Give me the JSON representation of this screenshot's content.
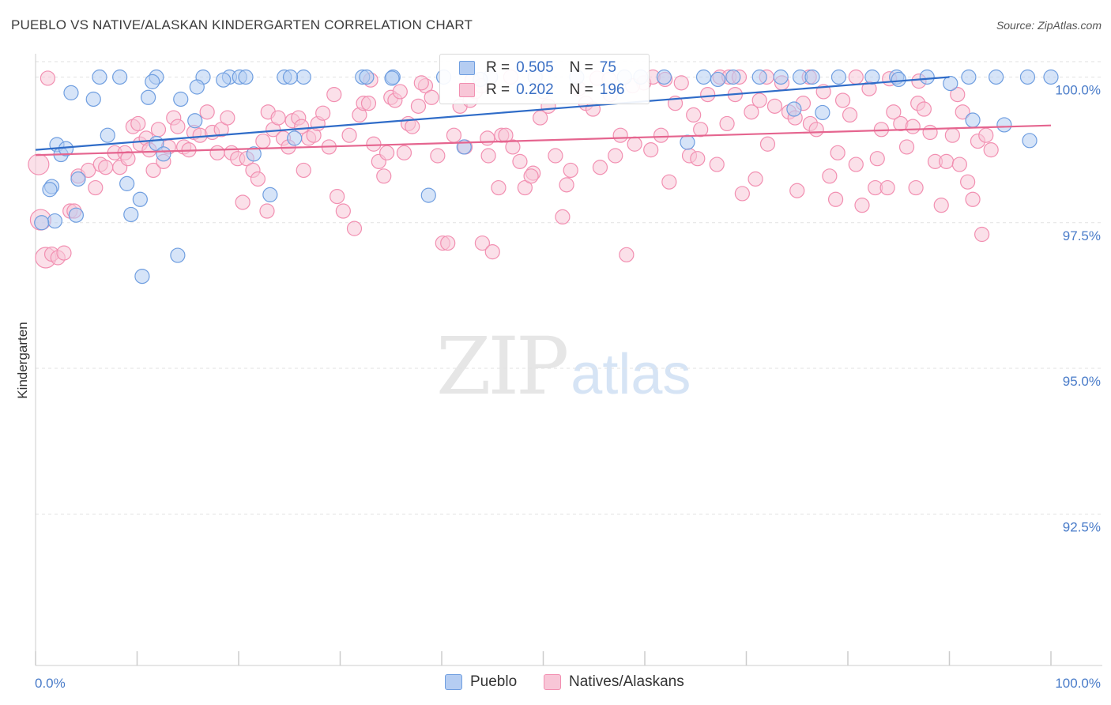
{
  "header": {
    "title": "PUEBLO VS NATIVE/ALASKAN KINDERGARTEN CORRELATION CHART",
    "source": "Source: ZipAtlas.com"
  },
  "watermark": {
    "zip": "ZIP",
    "atlas": "atlas"
  },
  "legend": {
    "r_label": "R =",
    "n_label": "N =",
    "rows": [
      {
        "name": "Pueblo",
        "r": "0.505",
        "n": "75",
        "color": "#6f9ee0"
      },
      {
        "name": "Natives/Alaskans",
        "r": "0.202",
        "n": "196",
        "color": "#f28fb1"
      }
    ]
  },
  "chart_data": {
    "type": "scatter",
    "title": "PUEBLO VS NATIVE/ALASKAN KINDERGARTEN CORRELATION CHART",
    "xlabel": "",
    "ylabel": "Kindergarten",
    "xlim": [
      0,
      100
    ],
    "ylim": [
      89.9,
      100.4
    ],
    "x_tick_labels": [
      "0.0%",
      "100.0%"
    ],
    "y_ticks": [
      {
        "value": 100.0,
        "label": "100.0%"
      },
      {
        "value": 97.5,
        "label": "97.5%"
      },
      {
        "value": 95.0,
        "label": "95.0%"
      },
      {
        "value": 92.5,
        "label": "92.5%"
      }
    ],
    "grid": true,
    "legend_position": "top-center",
    "series": [
      {
        "name": "Pueblo",
        "color": "#6f9ee0",
        "fill": "#b5cdf2",
        "trend": {
          "x": [
            0,
            90
          ],
          "y": [
            98.75,
            100.0
          ]
        },
        "points": [
          [
            6.3,
            100.0
          ],
          [
            8.3,
            100.0
          ],
          [
            11.9,
            100.0
          ],
          [
            16.5,
            100.0
          ],
          [
            19.1,
            100.0
          ],
          [
            20.1,
            100.0
          ],
          [
            20.7,
            100.0
          ],
          [
            24.5,
            100.0
          ],
          [
            26.4,
            100.0
          ],
          [
            32.2,
            100.0
          ],
          [
            35.2,
            100.0
          ],
          [
            40.2,
            100.0
          ],
          [
            44.8,
            100.0
          ],
          [
            49.2,
            100.0
          ],
          [
            53.3,
            100.0
          ],
          [
            59.6,
            100.0
          ],
          [
            61.9,
            100.0
          ],
          [
            65.8,
            100.0
          ],
          [
            68.7,
            100.0
          ],
          [
            71.3,
            100.0
          ],
          [
            73.4,
            100.0
          ],
          [
            75.3,
            100.0
          ],
          [
            76.5,
            100.0
          ],
          [
            79.1,
            100.0
          ],
          [
            82.4,
            100.0
          ],
          [
            84.8,
            100.0
          ],
          [
            87.8,
            100.0
          ],
          [
            91.9,
            100.0
          ],
          [
            94.6,
            100.0
          ],
          [
            97.7,
            100.0
          ],
          [
            100.0,
            100.0
          ],
          [
            35.1,
            99.98
          ],
          [
            43.8,
            99.96
          ],
          [
            67.2,
            99.96
          ],
          [
            18.5,
            99.95
          ],
          [
            90.1,
            99.89
          ],
          [
            85.0,
            99.96
          ],
          [
            3.5,
            99.73
          ],
          [
            5.7,
            99.62
          ],
          [
            11.1,
            99.65
          ],
          [
            14.3,
            99.62
          ],
          [
            15.7,
            99.25
          ],
          [
            15.9,
            99.83
          ],
          [
            74.7,
            99.45
          ],
          [
            92.3,
            99.26
          ],
          [
            77.5,
            99.39
          ],
          [
            11.5,
            99.92
          ],
          [
            7.1,
            99.0
          ],
          [
            2.1,
            98.84
          ],
          [
            2.5,
            98.67
          ],
          [
            3.0,
            98.77
          ],
          [
            11.9,
            98.86
          ],
          [
            12.6,
            98.68
          ],
          [
            21.5,
            98.68
          ],
          [
            25.5,
            98.95
          ],
          [
            42.2,
            98.8
          ],
          [
            64.2,
            98.88
          ],
          [
            97.9,
            98.91
          ],
          [
            95.4,
            99.18
          ],
          [
            1.6,
            98.12
          ],
          [
            4.2,
            98.25
          ],
          [
            9.0,
            98.17
          ],
          [
            1.4,
            98.07
          ],
          [
            10.3,
            97.9
          ],
          [
            23.1,
            97.98
          ],
          [
            38.7,
            97.97
          ],
          [
            4.0,
            97.63
          ],
          [
            1.9,
            97.53
          ],
          [
            0.6,
            97.5
          ],
          [
            9.4,
            97.64
          ],
          [
            14.0,
            96.94
          ],
          [
            10.5,
            96.58
          ],
          [
            25.1,
            100.0
          ],
          [
            32.6,
            100.0
          ],
          [
            58.0,
            100.0
          ]
        ]
      },
      {
        "name": "Natives/Alaskans",
        "color": "#f28fb1",
        "fill": "#f8c6d7",
        "trend": {
          "x": [
            0,
            100
          ],
          "y": [
            98.66,
            99.17
          ]
        },
        "points": [
          [
            0.3,
            98.5
          ],
          [
            1.0,
            96.9
          ],
          [
            0.5,
            97.55
          ],
          [
            1.6,
            96.96
          ],
          [
            2.2,
            96.9
          ],
          [
            2.8,
            96.98
          ],
          [
            3.4,
            97.7
          ],
          [
            3.8,
            97.7
          ],
          [
            4.2,
            98.3
          ],
          [
            5.2,
            98.4
          ],
          [
            5.9,
            98.1
          ],
          [
            6.4,
            98.5
          ],
          [
            6.9,
            98.45
          ],
          [
            7.8,
            98.7
          ],
          [
            8.3,
            98.45
          ],
          [
            8.8,
            98.7
          ],
          [
            9.1,
            98.6
          ],
          [
            9.6,
            99.15
          ],
          [
            10.1,
            99.2
          ],
          [
            10.3,
            98.85
          ],
          [
            10.9,
            98.95
          ],
          [
            11.2,
            98.75
          ],
          [
            11.6,
            98.4
          ],
          [
            12.1,
            99.1
          ],
          [
            12.6,
            98.55
          ],
          [
            13.1,
            98.8
          ],
          [
            13.6,
            99.3
          ],
          [
            14.0,
            99.15
          ],
          [
            14.6,
            98.8
          ],
          [
            15.1,
            98.75
          ],
          [
            15.6,
            99.05
          ],
          [
            16.2,
            99.0
          ],
          [
            16.9,
            99.4
          ],
          [
            17.4,
            99.05
          ],
          [
            17.9,
            98.7
          ],
          [
            18.3,
            99.1
          ],
          [
            18.9,
            99.3
          ],
          [
            19.3,
            98.7
          ],
          [
            19.9,
            98.6
          ],
          [
            20.4,
            97.85
          ],
          [
            20.8,
            98.6
          ],
          [
            21.4,
            98.4
          ],
          [
            21.9,
            98.25
          ],
          [
            22.4,
            98.9
          ],
          [
            22.9,
            99.4
          ],
          [
            23.4,
            99.1
          ],
          [
            23.9,
            99.3
          ],
          [
            24.4,
            98.95
          ],
          [
            24.9,
            98.8
          ],
          [
            25.3,
            99.25
          ],
          [
            25.9,
            99.3
          ],
          [
            26.4,
            98.4
          ],
          [
            26.9,
            98.95
          ],
          [
            27.4,
            99.0
          ],
          [
            27.8,
            99.2
          ],
          [
            28.3,
            99.38
          ],
          [
            28.9,
            98.8
          ],
          [
            29.4,
            99.7
          ],
          [
            29.7,
            97.95
          ],
          [
            30.3,
            97.7
          ],
          [
            30.9,
            99.0
          ],
          [
            31.4,
            97.4
          ],
          [
            31.9,
            99.35
          ],
          [
            32.3,
            99.55
          ],
          [
            32.8,
            99.55
          ],
          [
            33.3,
            98.85
          ],
          [
            33.8,
            98.55
          ],
          [
            34.3,
            98.3
          ],
          [
            34.6,
            98.7
          ],
          [
            35.0,
            99.65
          ],
          [
            35.4,
            99.6
          ],
          [
            35.9,
            99.75
          ],
          [
            36.3,
            98.7
          ],
          [
            36.7,
            99.2
          ],
          [
            37.1,
            99.15
          ],
          [
            37.7,
            99.5
          ],
          [
            38.4,
            99.85
          ],
          [
            39.0,
            99.65
          ],
          [
            39.6,
            98.65
          ],
          [
            40.1,
            97.15
          ],
          [
            40.6,
            97.15
          ],
          [
            41.2,
            99.0
          ],
          [
            41.8,
            99.5
          ],
          [
            42.3,
            98.8
          ],
          [
            42.8,
            99.6
          ],
          [
            43.3,
            99.75
          ],
          [
            44.0,
            97.15
          ],
          [
            44.6,
            98.65
          ],
          [
            45.0,
            97.0
          ],
          [
            45.6,
            98.1
          ],
          [
            45.9,
            99.0
          ],
          [
            46.3,
            99.0
          ],
          [
            47.0,
            98.8
          ],
          [
            47.7,
            98.55
          ],
          [
            48.2,
            98.1
          ],
          [
            49.0,
            98.35
          ],
          [
            49.7,
            99.3
          ],
          [
            50.5,
            99.5
          ],
          [
            51.2,
            98.65
          ],
          [
            51.9,
            97.6
          ],
          [
            52.7,
            98.4
          ],
          [
            53.5,
            99.8
          ],
          [
            54.2,
            99.55
          ],
          [
            54.9,
            99.45
          ],
          [
            55.6,
            98.45
          ],
          [
            56.6,
            99.7
          ],
          [
            57.6,
            99.0
          ],
          [
            58.2,
            96.95
          ],
          [
            59.0,
            98.85
          ],
          [
            59.9,
            99.9
          ],
          [
            60.6,
            98.75
          ],
          [
            61.6,
            99.0
          ],
          [
            62.4,
            98.2
          ],
          [
            63.0,
            99.55
          ],
          [
            63.6,
            99.9
          ],
          [
            64.4,
            98.65
          ],
          [
            64.8,
            99.35
          ],
          [
            65.5,
            99.1
          ],
          [
            66.2,
            99.7
          ],
          [
            67.1,
            98.5
          ],
          [
            68.1,
            99.2
          ],
          [
            68.9,
            99.7
          ],
          [
            69.6,
            98.0
          ],
          [
            70.5,
            99.4
          ],
          [
            71.3,
            99.6
          ],
          [
            72.1,
            98.85
          ],
          [
            72.8,
            99.5
          ],
          [
            73.5,
            99.9
          ],
          [
            74.2,
            99.4
          ],
          [
            75.0,
            98.05
          ],
          [
            75.6,
            99.55
          ],
          [
            76.3,
            99.2
          ],
          [
            76.9,
            99.1
          ],
          [
            77.6,
            99.75
          ],
          [
            78.2,
            98.3
          ],
          [
            78.8,
            97.9
          ],
          [
            79.5,
            99.6
          ],
          [
            80.2,
            99.35
          ],
          [
            80.8,
            98.5
          ],
          [
            81.4,
            97.8
          ],
          [
            82.1,
            99.8
          ],
          [
            82.7,
            98.1
          ],
          [
            83.3,
            99.1
          ],
          [
            83.9,
            98.1
          ],
          [
            84.5,
            99.4
          ],
          [
            85.2,
            99.2
          ],
          [
            85.8,
            98.8
          ],
          [
            86.4,
            99.15
          ],
          [
            86.9,
            99.55
          ],
          [
            87.5,
            99.45
          ],
          [
            88.1,
            99.05
          ],
          [
            88.6,
            98.55
          ],
          [
            89.2,
            97.8
          ],
          [
            89.7,
            98.55
          ],
          [
            90.3,
            99.0
          ],
          [
            90.8,
            99.7
          ],
          [
            91.3,
            99.4
          ],
          [
            91.8,
            98.2
          ],
          [
            92.3,
            97.9
          ],
          [
            92.8,
            98.9
          ],
          [
            93.2,
            97.3
          ],
          [
            93.6,
            99.0
          ],
          [
            94.1,
            98.75
          ],
          [
            1.2,
            99.98
          ],
          [
            43.0,
            99.95
          ],
          [
            46.8,
            100.0
          ],
          [
            55.3,
            99.98
          ],
          [
            60.8,
            100.0
          ],
          [
            67.4,
            100.0
          ],
          [
            68.3,
            100.0
          ],
          [
            72.0,
            100.0
          ],
          [
            76.2,
            100.0
          ],
          [
            80.8,
            100.0
          ],
          [
            56.5,
            99.96
          ],
          [
            62.0,
            99.96
          ],
          [
            69.3,
            100.0
          ],
          [
            84.1,
            99.97
          ],
          [
            87.0,
            99.93
          ],
          [
            22.8,
            97.7
          ],
          [
            44.5,
            98.95
          ],
          [
            48.8,
            98.3
          ],
          [
            52.3,
            98.15
          ],
          [
            57.1,
            98.65
          ],
          [
            65.2,
            98.6
          ],
          [
            70.9,
            98.25
          ],
          [
            74.8,
            99.3
          ],
          [
            79.0,
            98.7
          ],
          [
            82.9,
            98.6
          ],
          [
            86.7,
            98.1
          ],
          [
            91.0,
            98.5
          ],
          [
            26.2,
            99.15
          ],
          [
            33.0,
            99.95
          ],
          [
            38.0,
            99.9
          ],
          [
            43.9,
            99.85
          ],
          [
            50.0,
            99.75
          ],
          [
            58.8,
            99.85
          ]
        ]
      }
    ]
  }
}
